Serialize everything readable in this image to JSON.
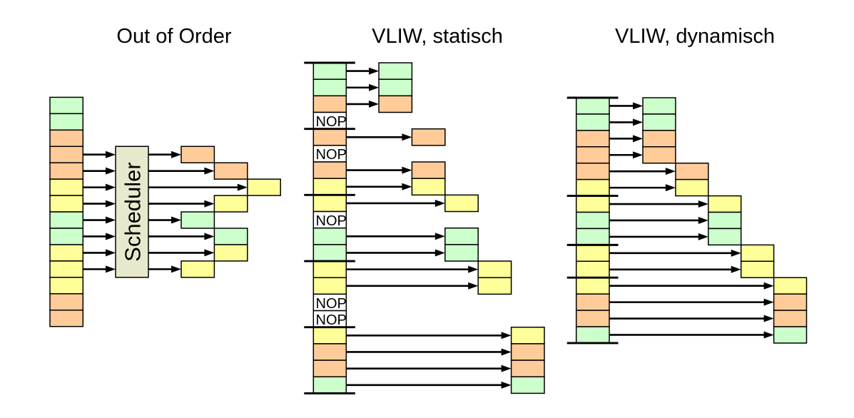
{
  "figure": {
    "description": "Comparison of instruction scheduling: out-of-order superscalar vs. static VLIW vs. dynamic VLIW",
    "background_color": "#ffffff"
  },
  "colors": {
    "green": "#ccffcc",
    "orange": "#ffcc99",
    "yellow": "#ffff99",
    "nop_fill": "#ffffff",
    "scheduler_fill": "#e8e8cc",
    "stroke": "#000000"
  },
  "labels": {
    "scheduler": "Scheduler",
    "nop": "NOP"
  },
  "diagrams": [
    {
      "id": "out-of-order",
      "title": "Out of Order",
      "stream": [
        "green",
        "green",
        "orange",
        "orange",
        "orange",
        "yellow",
        "yellow",
        "green",
        "green",
        "yellow",
        "yellow",
        "yellow",
        "orange",
        "orange"
      ],
      "word_boundaries": [],
      "scheduler": true,
      "issued": [
        {
          "row": 3,
          "slot": 0,
          "color": "orange"
        },
        {
          "row": 4,
          "slot": 1,
          "color": "orange"
        },
        {
          "row": 5,
          "slot": 2,
          "color": "yellow"
        },
        {
          "row": 6,
          "slot": 1,
          "color": "yellow"
        },
        {
          "row": 7,
          "slot": 0,
          "color": "green"
        },
        {
          "row": 8,
          "slot": 1,
          "color": "green"
        },
        {
          "row": 9,
          "slot": 1,
          "color": "yellow"
        },
        {
          "row": 10,
          "slot": 0,
          "color": "yellow"
        }
      ]
    },
    {
      "id": "vliw-static",
      "title": "VLIW, statisch",
      "stream": [
        "green",
        "green",
        "orange",
        "NOP",
        "orange",
        "NOP",
        "orange",
        "yellow",
        "yellow",
        "NOP",
        "green",
        "green",
        "yellow",
        "yellow",
        "NOP",
        "NOP",
        "yellow",
        "orange",
        "orange",
        "green"
      ],
      "word_boundaries": [
        0,
        4,
        8,
        12,
        16,
        20
      ],
      "scheduler": false,
      "issued": [
        {
          "row": 0,
          "slot": 0,
          "color": "green"
        },
        {
          "row": 1,
          "slot": 0,
          "color": "green"
        },
        {
          "row": 2,
          "slot": 0,
          "color": "orange"
        },
        {
          "row": 4,
          "slot": 1,
          "color": "orange"
        },
        {
          "row": 6,
          "slot": 1,
          "color": "orange"
        },
        {
          "row": 7,
          "slot": 1,
          "color": "yellow"
        },
        {
          "row": 8,
          "slot": 2,
          "color": "yellow"
        },
        {
          "row": 10,
          "slot": 2,
          "color": "green"
        },
        {
          "row": 11,
          "slot": 2,
          "color": "green"
        },
        {
          "row": 12,
          "slot": 3,
          "color": "yellow"
        },
        {
          "row": 13,
          "slot": 3,
          "color": "yellow"
        },
        {
          "row": 16,
          "slot": 4,
          "color": "yellow"
        },
        {
          "row": 17,
          "slot": 4,
          "color": "orange"
        },
        {
          "row": 18,
          "slot": 4,
          "color": "orange"
        },
        {
          "row": 19,
          "slot": 4,
          "color": "green"
        }
      ]
    },
    {
      "id": "vliw-dynamic",
      "title": "VLIW, dynamisch",
      "stream": [
        "green",
        "green",
        "orange",
        "orange",
        "orange",
        "yellow",
        "yellow",
        "green",
        "green",
        "yellow",
        "yellow",
        "yellow",
        "orange",
        "orange",
        "green"
      ],
      "word_boundaries": [
        0,
        6,
        9,
        11,
        15
      ],
      "scheduler": false,
      "issued": [
        {
          "row": 0,
          "slot": 0,
          "color": "green"
        },
        {
          "row": 1,
          "slot": 0,
          "color": "green"
        },
        {
          "row": 2,
          "slot": 0,
          "color": "orange"
        },
        {
          "row": 3,
          "slot": 0,
          "color": "orange"
        },
        {
          "row": 4,
          "slot": 1,
          "color": "orange"
        },
        {
          "row": 5,
          "slot": 1,
          "color": "yellow"
        },
        {
          "row": 6,
          "slot": 2,
          "color": "yellow"
        },
        {
          "row": 7,
          "slot": 2,
          "color": "green"
        },
        {
          "row": 8,
          "slot": 2,
          "color": "green"
        },
        {
          "row": 9,
          "slot": 3,
          "color": "yellow"
        },
        {
          "row": 10,
          "slot": 3,
          "color": "yellow"
        },
        {
          "row": 11,
          "slot": 4,
          "color": "yellow"
        },
        {
          "row": 12,
          "slot": 4,
          "color": "orange"
        },
        {
          "row": 13,
          "slot": 4,
          "color": "orange"
        },
        {
          "row": 14,
          "slot": 4,
          "color": "green"
        }
      ]
    }
  ]
}
